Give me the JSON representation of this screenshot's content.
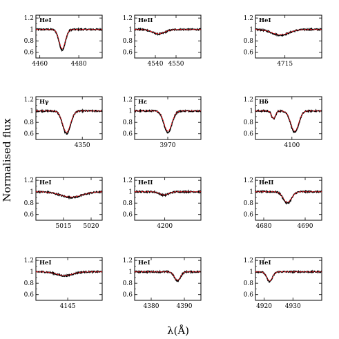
{
  "figure": {
    "ylabel": "Normalised flux",
    "xlabel": "λ(Å)"
  },
  "colors": {
    "observed": "#000000",
    "model": "#e0141c",
    "frame": "#000000"
  },
  "chart_data": [
    {
      "type": "line",
      "label": "HeI",
      "xlim": [
        4458,
        4492
      ],
      "ylim": [
        0.5,
        1.25
      ],
      "yticks": [
        0.6,
        0.8,
        1,
        1.2
      ],
      "ytick_labels": [
        "0.6",
        "0.8",
        "1",
        "1.2"
      ],
      "xticks": [
        4460,
        4480
      ],
      "xtick_labels": [
        "4460",
        "4480"
      ],
      "line_center": 4471.5,
      "depth": 0.36,
      "width": 1.6
    },
    {
      "type": "line",
      "label": "HeII",
      "xlim": [
        4530,
        4562
      ],
      "ylim": [
        0.5,
        1.25
      ],
      "yticks": [
        0.6,
        0.8,
        1,
        1.2
      ],
      "ytick_labels": [
        "0.6",
        "0.8",
        "1",
        "1.2"
      ],
      "xticks": [
        4540,
        4550
      ],
      "xtick_labels": [
        "4540",
        "4550"
      ],
      "line_center": 4541.6,
      "depth": 0.08,
      "width": 3.0
    },
    {
      "type": "line",
      "label": "HeI",
      "xlim": [
        4703,
        4730
      ],
      "ylim": [
        0.5,
        1.25
      ],
      "yticks": [
        0.6,
        0.8,
        1,
        1.2
      ],
      "ytick_labels": [
        "0.6",
        "0.8",
        "1",
        "1.2"
      ],
      "xticks": [
        4715
      ],
      "xtick_labels": [
        "4715"
      ],
      "line_center": 4713.2,
      "depth": 0.1,
      "width": 3.5
    },
    {
      "type": "line",
      "label": "Hγ",
      "xlim": [
        4322,
        4362
      ],
      "ylim": [
        0.5,
        1.25
      ],
      "yticks": [
        0.6,
        0.8,
        1,
        1.2
      ],
      "ytick_labels": [
        "0.6",
        "0.8",
        "1",
        "1.2"
      ],
      "xticks": [
        4350
      ],
      "xtick_labels": [
        "4350"
      ],
      "line_center": 4340.5,
      "depth": 0.4,
      "width": 2.4
    },
    {
      "type": "line",
      "label": "Hε",
      "xlim": [
        3950,
        3990
      ],
      "ylim": [
        0.5,
        1.25
      ],
      "yticks": [
        0.6,
        0.8,
        1,
        1.2
      ],
      "ytick_labels": [
        "0.6",
        "0.8",
        "1",
        "1.2"
      ],
      "xticks": [
        3970
      ],
      "xtick_labels": [
        "3970"
      ],
      "line_center": 3970.1,
      "depth": 0.38,
      "width": 2.4
    },
    {
      "type": "line",
      "label": "Hδ",
      "xlim": [
        4078,
        4118
      ],
      "ylim": [
        0.5,
        1.25
      ],
      "yticks": [
        0.6,
        0.8,
        1,
        1.2
      ],
      "ytick_labels": [
        "0.6",
        "0.8",
        "1",
        "1.2"
      ],
      "xticks": [
        4100
      ],
      "xtick_labels": [
        "4100"
      ],
      "line_center": 4101.7,
      "depth": 0.38,
      "width": 2.4,
      "secondary_center": 4088.9,
      "secondary_depth": 0.14,
      "secondary_width": 1.2
    },
    {
      "type": "line",
      "label": "HeI",
      "xlim": [
        5010,
        5022
      ],
      "ylim": [
        0.5,
        1.25
      ],
      "yticks": [
        0.6,
        0.8,
        1,
        1.2
      ],
      "ytick_labels": [
        "0.6",
        "0.8",
        "1",
        "1.2"
      ],
      "xticks": [
        5015,
        5020
      ],
      "xtick_labels": [
        "5015",
        "5020"
      ],
      "line_center": 5016.4,
      "depth": 0.1,
      "width": 2.0
    },
    {
      "type": "line",
      "label": "HeII",
      "xlim": [
        4190,
        4212
      ],
      "ylim": [
        0.5,
        1.25
      ],
      "yticks": [
        0.6,
        0.8,
        1,
        1.2
      ],
      "ytick_labels": [
        "0.6",
        "0.8",
        "1",
        "1.2"
      ],
      "xticks": [
        4200
      ],
      "xtick_labels": [
        "4200"
      ],
      "line_center": 4199.8,
      "depth": 0.06,
      "width": 1.5
    },
    {
      "type": "line",
      "label": "HeII",
      "xlim": [
        4678,
        4694
      ],
      "ylim": [
        0.5,
        1.25
      ],
      "yticks": [
        0.6,
        0.8,
        1,
        1.2
      ],
      "ytick_labels": [
        "0.6",
        "0.8",
        "1",
        "1.2"
      ],
      "xticks": [
        4680,
        4690
      ],
      "xtick_labels": [
        "4680",
        "4690"
      ],
      "line_center": 4685.7,
      "depth": 0.2,
      "width": 1.0
    },
    {
      "type": "line",
      "label": "HeI",
      "xlim": [
        4133,
        4158
      ],
      "ylim": [
        0.5,
        1.25
      ],
      "yticks": [
        0.6,
        0.8,
        1,
        1.2
      ],
      "ytick_labels": [
        "0.6",
        "0.8",
        "1",
        "1.2"
      ],
      "xticks": [
        4145
      ],
      "xtick_labels": [
        "4145"
      ],
      "line_center": 4143.8,
      "depth": 0.07,
      "width": 3.0
    },
    {
      "type": "line",
      "label": "HeI",
      "xlim": [
        4375,
        4395
      ],
      "ylim": [
        0.5,
        1.25
      ],
      "yticks": [
        0.6,
        0.8,
        1,
        1.2
      ],
      "ytick_labels": [
        "0.6",
        "0.8",
        "1",
        "1.2"
      ],
      "xticks": [
        4380,
        4390
      ],
      "xtick_labels": [
        "4380",
        "4390"
      ],
      "line_center": 4387.9,
      "depth": 0.16,
      "width": 0.9
    },
    {
      "type": "line",
      "label": "HeI",
      "xlim": [
        4917,
        4940
      ],
      "ylim": [
        0.5,
        1.25
      ],
      "yticks": [
        0.6,
        0.8,
        1,
        1.2
      ],
      "ytick_labels": [
        "0.6",
        "0.8",
        "1",
        "1.2"
      ],
      "xticks": [
        4920,
        4930
      ],
      "xtick_labels": [
        "4920",
        "4930"
      ],
      "line_center": 4921.9,
      "depth": 0.17,
      "width": 1.0
    }
  ]
}
